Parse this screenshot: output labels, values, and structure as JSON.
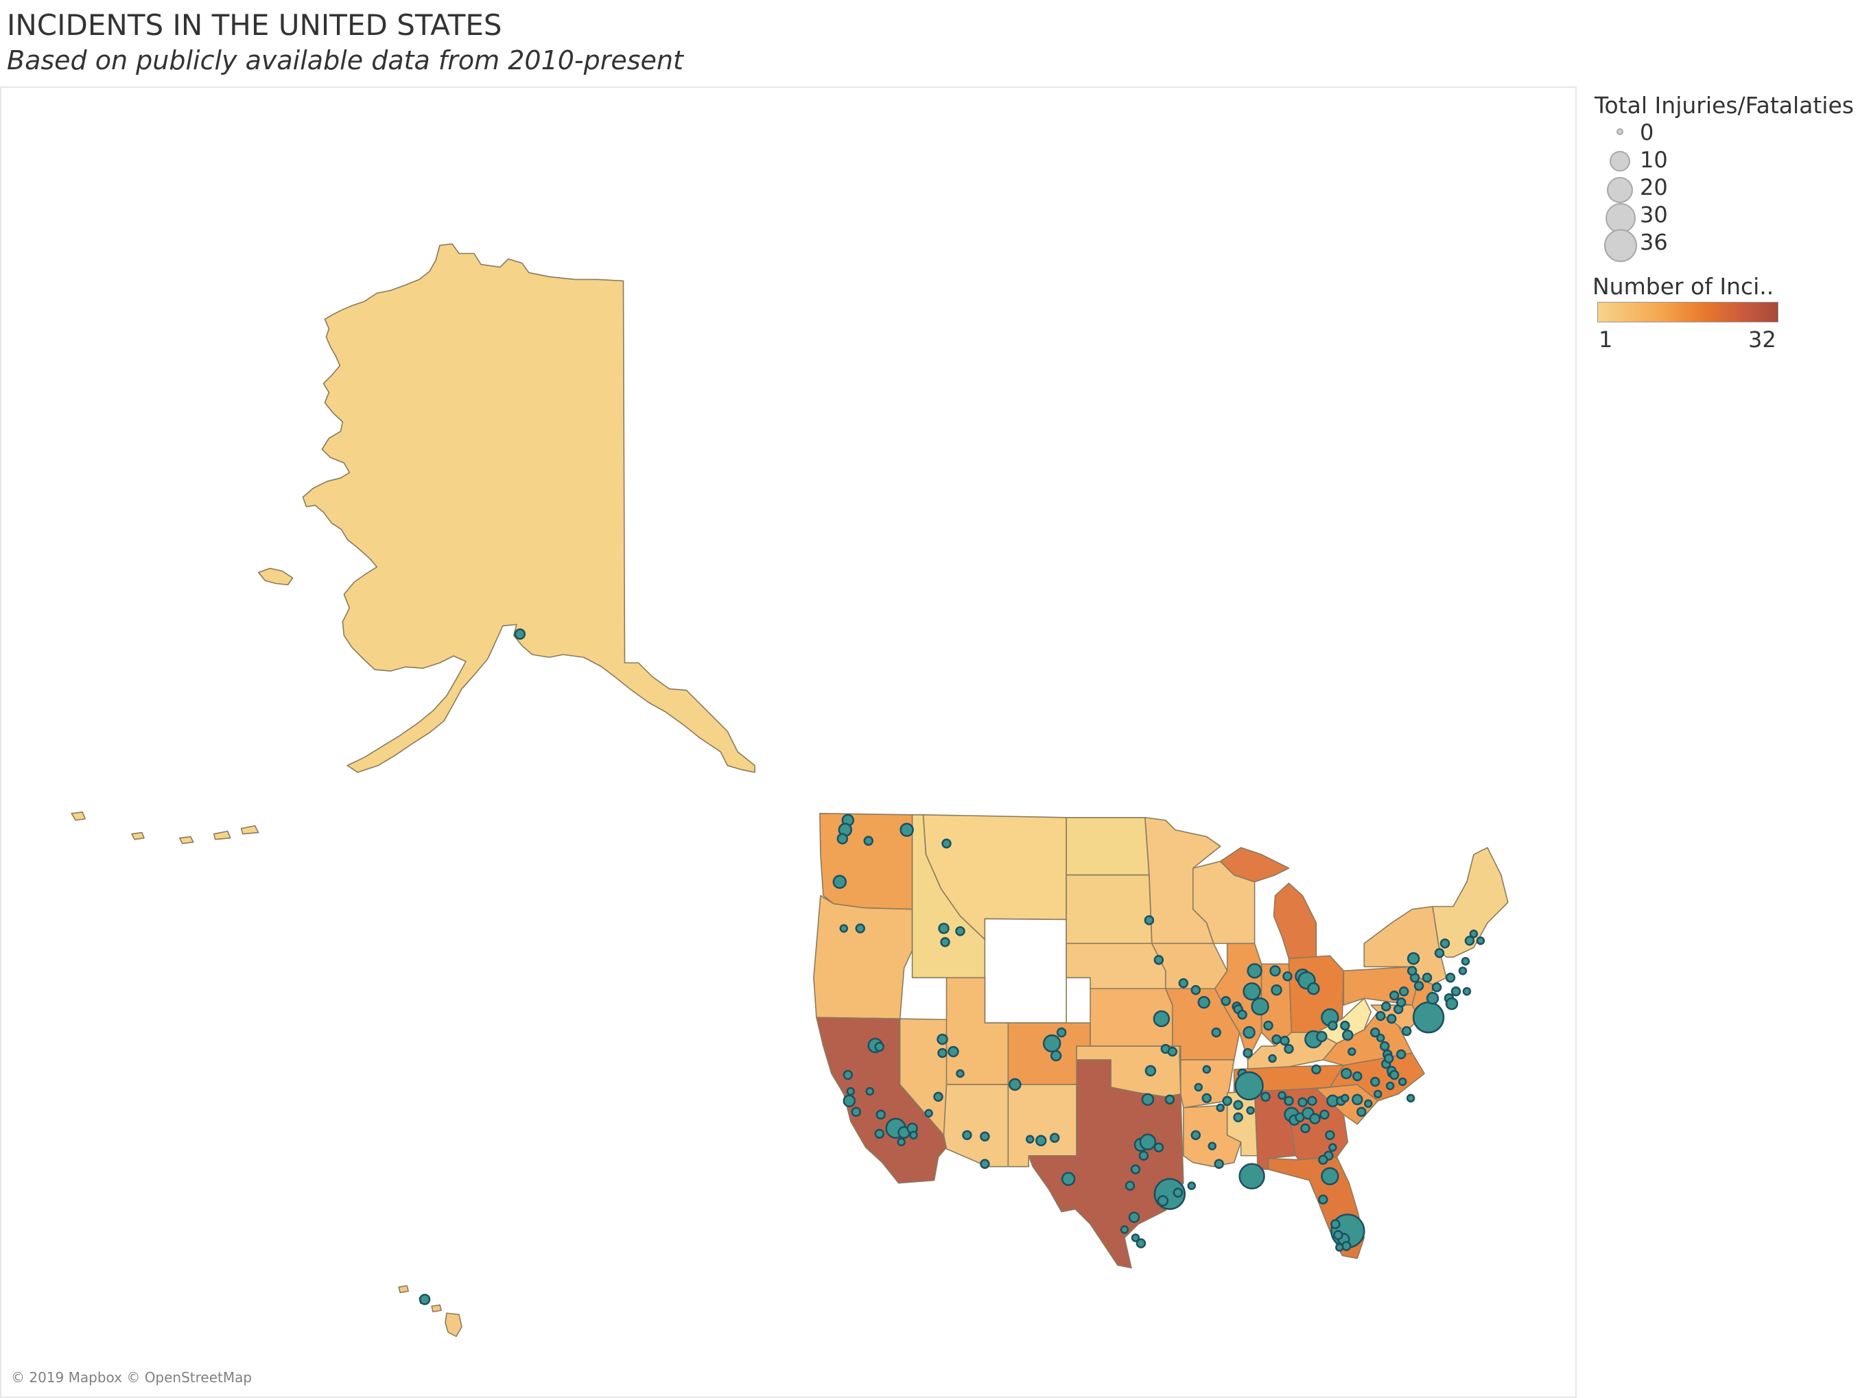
{
  "header": {
    "title": "INCIDENTS IN THE UNITED STATES",
    "subtitle": "Based on publicly available data from 2010-present"
  },
  "map": {
    "attribution": "© 2019 Mapbox © OpenStreetMap",
    "marker_color": "#3b9490",
    "marker_stroke": "#1d4f5f",
    "state_border_color": "#8a7a5c",
    "no_data_color": "#ffffff"
  },
  "legend": {
    "size_title": "Total Injuries/Fatalaties",
    "sizes": [
      {
        "label": "0",
        "value": 0
      },
      {
        "label": "10",
        "value": 10
      },
      {
        "label": "20",
        "value": 20
      },
      {
        "label": "30",
        "value": 30
      },
      {
        "label": "36",
        "value": 36
      }
    ],
    "color_title": "Number of Inci..",
    "color_min": "1",
    "color_max": "32",
    "color_stops": [
      "#f7d38a",
      "#f5a64e",
      "#e8772b",
      "#c85a3e",
      "#a64a3a"
    ]
  }
}
